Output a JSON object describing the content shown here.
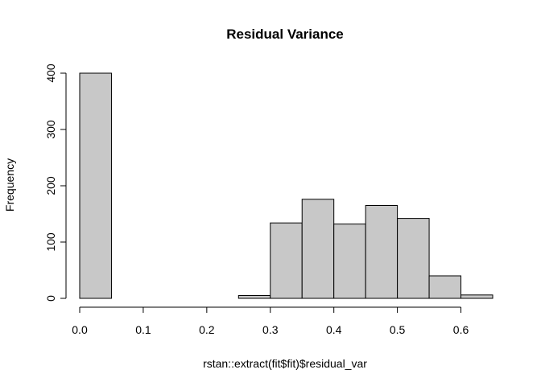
{
  "chart_data": {
    "type": "bar",
    "title": "Residual Variance",
    "xlabel": "rstan::extract(fit$fit)$residual_var",
    "ylabel": "Frequency",
    "bins": [
      {
        "start": 0.0,
        "end": 0.05,
        "count": 400
      },
      {
        "start": 0.05,
        "end": 0.1,
        "count": 0
      },
      {
        "start": 0.1,
        "end": 0.15,
        "count": 0
      },
      {
        "start": 0.15,
        "end": 0.2,
        "count": 0
      },
      {
        "start": 0.2,
        "end": 0.25,
        "count": 0
      },
      {
        "start": 0.25,
        "end": 0.3,
        "count": 5
      },
      {
        "start": 0.3,
        "end": 0.35,
        "count": 134
      },
      {
        "start": 0.35,
        "end": 0.4,
        "count": 176
      },
      {
        "start": 0.4,
        "end": 0.45,
        "count": 132
      },
      {
        "start": 0.45,
        "end": 0.5,
        "count": 165
      },
      {
        "start": 0.5,
        "end": 0.55,
        "count": 142
      },
      {
        "start": 0.55,
        "end": 0.6,
        "count": 40
      },
      {
        "start": 0.6,
        "end": 0.65,
        "count": 6
      }
    ],
    "x_ticks": [
      "0.0",
      "0.1",
      "0.2",
      "0.3",
      "0.4",
      "0.5",
      "0.6"
    ],
    "y_ticks": [
      "0",
      "100",
      "200",
      "300",
      "400"
    ],
    "xlim": [
      0,
      0.65
    ],
    "ylim": [
      0,
      400
    ],
    "grid": false,
    "colors": {
      "bar_fill": "#c8c8c8",
      "bar_stroke": "#000000"
    }
  }
}
